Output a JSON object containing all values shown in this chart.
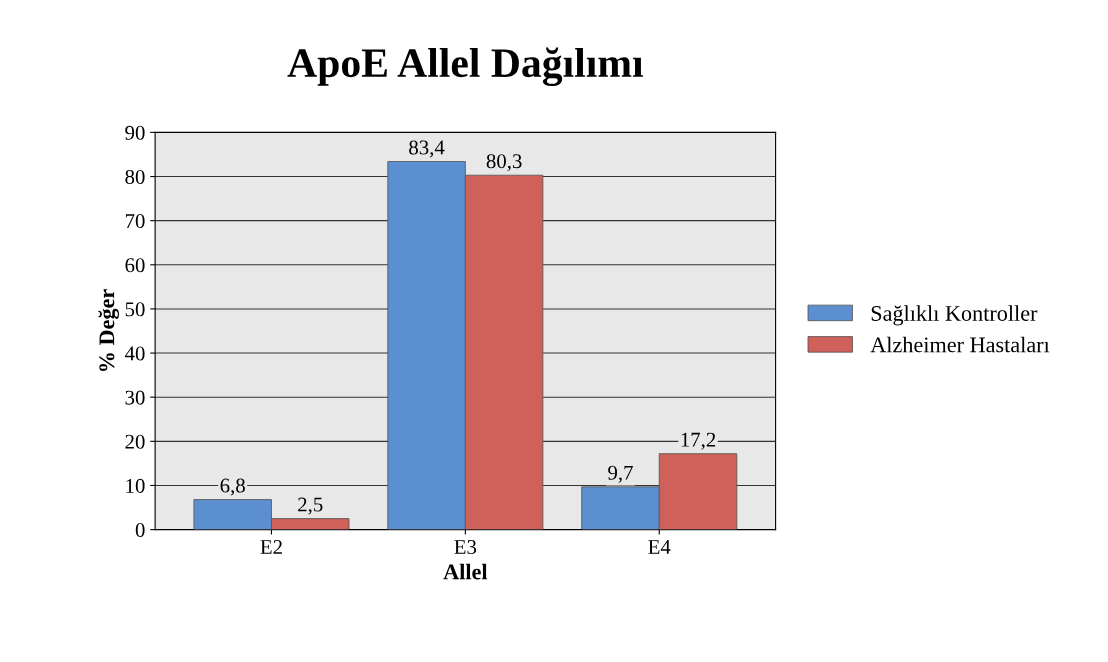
{
  "chart_data": {
    "type": "bar",
    "title": "ApoE Allel Dağılımı",
    "xlabel": "Allel",
    "ylabel": "% Değer",
    "categories": [
      "E2",
      "E3",
      "E4"
    ],
    "series": [
      {
        "name": "Sağlıklı Kontroller",
        "color": "#5b8fd0",
        "values": [
          6.8,
          83.4,
          9.7
        ],
        "value_labels": [
          "6,8",
          "83,4",
          "9,7"
        ]
      },
      {
        "name": "Alzheimer Hastaları",
        "color": "#d0605a",
        "values": [
          2.5,
          80.3,
          17.2
        ],
        "value_labels": [
          "2,5",
          "80,3",
          "17,2"
        ]
      }
    ],
    "ylim": [
      0,
      90
    ],
    "yticks": [
      0,
      10,
      20,
      30,
      40,
      50,
      60,
      70,
      80,
      90
    ],
    "grid": "y",
    "legend": "right"
  }
}
